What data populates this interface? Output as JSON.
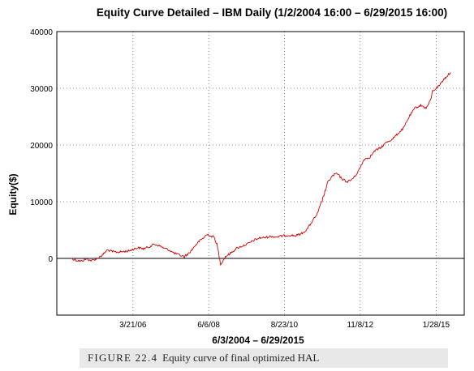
{
  "chart_data": {
    "type": "line",
    "title": "Equity Curve Detailed – IBM Daily (1/2/2004 16:00 – 6/29/2015 16:00)",
    "xlabel": "6/3/2004 – 6/29/2015",
    "ylabel": "Equity($)",
    "x_tick_labels": [
      "3/21/06",
      "6/6/08",
      "8/23/10",
      "11/8/12",
      "1/28/15"
    ],
    "y_tick_labels": [
      "40000",
      "30000",
      "20000",
      "10000",
      "0"
    ],
    "y_ticks": [
      40000,
      30000,
      20000,
      10000,
      0
    ],
    "ylim": [
      -10000,
      40000
    ],
    "xlim": [
      "2004-06-03",
      "2015-06-29"
    ],
    "grid": true,
    "series": [
      {
        "color": "#d40000",
        "points": [
          [
            "2004-06-03",
            0
          ],
          [
            "2004-07-20",
            -300
          ],
          [
            "2004-09-15",
            -500
          ],
          [
            "2004-11-10",
            -100
          ],
          [
            "2005-01-05",
            -400
          ],
          [
            "2005-03-01",
            -50
          ],
          [
            "2005-05-01",
            600
          ],
          [
            "2005-06-20",
            1500
          ],
          [
            "2005-08-15",
            1200
          ],
          [
            "2005-10-10",
            1100
          ],
          [
            "2005-12-05",
            1200
          ],
          [
            "2006-02-01",
            1300
          ],
          [
            "2006-03-21",
            1600
          ],
          [
            "2006-05-15",
            1900
          ],
          [
            "2006-07-10",
            1700
          ],
          [
            "2006-09-05",
            2000
          ],
          [
            "2006-11-01",
            2500
          ],
          [
            "2006-12-20",
            2300
          ],
          [
            "2007-02-15",
            1800
          ],
          [
            "2007-04-10",
            1500
          ],
          [
            "2007-06-05",
            900
          ],
          [
            "2007-07-30",
            600
          ],
          [
            "2007-09-20",
            300
          ],
          [
            "2007-11-15",
            1000
          ],
          [
            "2008-01-10",
            2200
          ],
          [
            "2008-02-25",
            3000
          ],
          [
            "2008-04-10",
            3600
          ],
          [
            "2008-05-10",
            4100
          ],
          [
            "2008-06-06",
            4200
          ],
          [
            "2008-07-01",
            3900
          ],
          [
            "2008-08-01",
            3800
          ],
          [
            "2008-09-01",
            2500
          ],
          [
            "2008-09-20",
            1000
          ],
          [
            "2008-10-10",
            -1000
          ],
          [
            "2008-11-01",
            -500
          ],
          [
            "2008-12-01",
            300
          ],
          [
            "2009-02-01",
            1000
          ],
          [
            "2009-04-01",
            1800
          ],
          [
            "2009-06-01",
            2200
          ],
          [
            "2009-08-01",
            2600
          ],
          [
            "2009-10-01",
            3200
          ],
          [
            "2009-12-01",
            3600
          ],
          [
            "2010-02-01",
            3700
          ],
          [
            "2010-04-01",
            3900
          ],
          [
            "2010-06-01",
            3800
          ],
          [
            "2010-08-23",
            4000
          ],
          [
            "2010-10-15",
            4100
          ],
          [
            "2010-12-15",
            4000
          ],
          [
            "2011-02-15",
            4300
          ],
          [
            "2011-04-15",
            5000
          ],
          [
            "2011-06-15",
            6500
          ],
          [
            "2011-08-15",
            8000
          ],
          [
            "2011-10-15",
            11000
          ],
          [
            "2011-12-01",
            13500
          ],
          [
            "2012-01-15",
            14500
          ],
          [
            "2012-03-01",
            15000
          ],
          [
            "2012-05-01",
            14000
          ],
          [
            "2012-06-20",
            13500
          ],
          [
            "2012-08-01",
            13800
          ],
          [
            "2012-09-15",
            14500
          ],
          [
            "2012-11-08",
            16000
          ],
          [
            "2012-12-20",
            17500
          ],
          [
            "2013-02-15",
            17800
          ],
          [
            "2013-04-15",
            19000
          ],
          [
            "2013-06-15",
            19500
          ],
          [
            "2013-08-15",
            20500
          ],
          [
            "2013-10-15",
            21000
          ],
          [
            "2013-12-15",
            22000
          ],
          [
            "2014-02-15",
            23000
          ],
          [
            "2014-04-15",
            25000
          ],
          [
            "2014-06-15",
            26500
          ],
          [
            "2014-08-15",
            27000
          ],
          [
            "2014-10-15",
            26500
          ],
          [
            "2014-12-01",
            28000
          ],
          [
            "2014-12-20",
            29500
          ],
          [
            "2015-01-28",
            30000
          ],
          [
            "2015-03-01",
            30500
          ],
          [
            "2015-04-15",
            31500
          ],
          [
            "2015-05-25",
            32200
          ],
          [
            "2015-06-29",
            32800
          ]
        ]
      }
    ]
  },
  "caption": {
    "label": "FIGURE 22.4",
    "text": "Equity curve of final optimized HAL"
  }
}
